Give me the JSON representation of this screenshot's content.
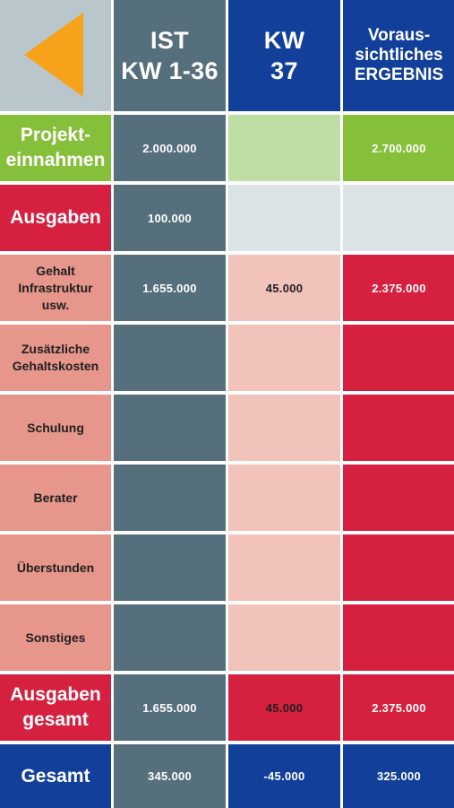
{
  "header": {
    "back_icon": "back-triangle-icon",
    "col_ist": "IST\nKW 1-36",
    "col_kw": "KW\n37",
    "col_result": "Voraus-\nsichtliches\nERGEBNIS"
  },
  "rows": [
    {
      "label": "Projekt-\neinnahmen",
      "ist": "2.000.000",
      "kw": "",
      "result": "2.700.000"
    },
    {
      "label": "Ausgaben",
      "ist": "100.000",
      "kw": "",
      "result": ""
    },
    {
      "label": "Gehalt\nInfrastruktur\nusw.",
      "ist": "1.655.000",
      "kw": "45.000",
      "result": "2.375.000"
    },
    {
      "label": "Zusätzliche\nGehaltskosten",
      "ist": "",
      "kw": "",
      "result": ""
    },
    {
      "label": "Schulung",
      "ist": "",
      "kw": "",
      "result": ""
    },
    {
      "label": "Berater",
      "ist": "",
      "kw": "",
      "result": ""
    },
    {
      "label": "Überstunden",
      "ist": "",
      "kw": "",
      "result": ""
    },
    {
      "label": "Sonstiges",
      "ist": "",
      "kw": "",
      "result": ""
    },
    {
      "label": "Ausgaben\ngesamt",
      "ist": "1.655.000",
      "kw": "45.000",
      "result": "2.375.000"
    },
    {
      "label": "Gesamt",
      "ist": "345.000",
      "kw": "-45.000",
      "result": "325.000"
    }
  ],
  "colors": {
    "grey": "#566f7d",
    "blue": "#123f99",
    "green": "#86bf3a",
    "red": "#d6203f",
    "salmon": "#e6968a",
    "pink": "#f1c3ba",
    "orange": "#f7a21b"
  }
}
